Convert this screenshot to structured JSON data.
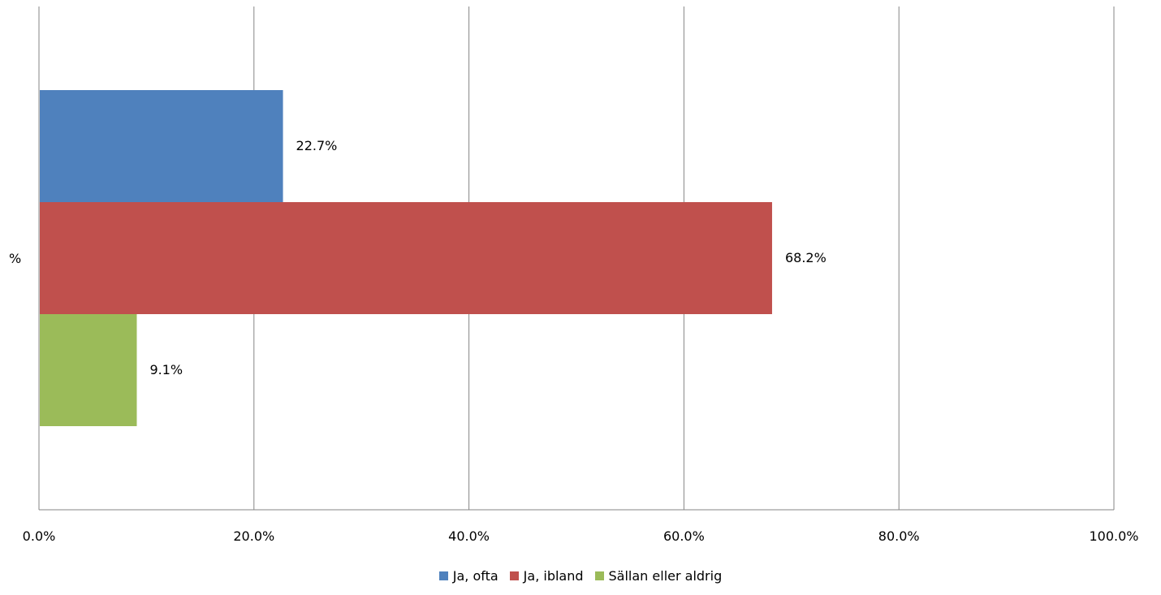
{
  "chart_data": {
    "type": "bar",
    "orientation": "horizontal",
    "categories": [
      "%"
    ],
    "series": [
      {
        "name": "Ja, ofta",
        "values": [
          22.7
        ],
        "label": "22.7%",
        "color": "#4F81BD"
      },
      {
        "name": "Ja, ibland",
        "values": [
          68.2
        ],
        "label": "68.2%",
        "color": "#C0504D"
      },
      {
        "name": "Sällan eller aldrig",
        "values": [
          9.1
        ],
        "label": "9.1%",
        "color": "#9BBB59"
      }
    ],
    "xlim": [
      0,
      100
    ],
    "x_ticks": [
      0,
      20,
      40,
      60,
      80,
      100
    ],
    "x_tick_labels": [
      "0.0%",
      "20.0%",
      "40.0%",
      "60.0%",
      "80.0%",
      "100.0%"
    ],
    "title": "",
    "xlabel": "",
    "ylabel": "",
    "grid": "vertical",
    "legend_position": "bottom"
  }
}
